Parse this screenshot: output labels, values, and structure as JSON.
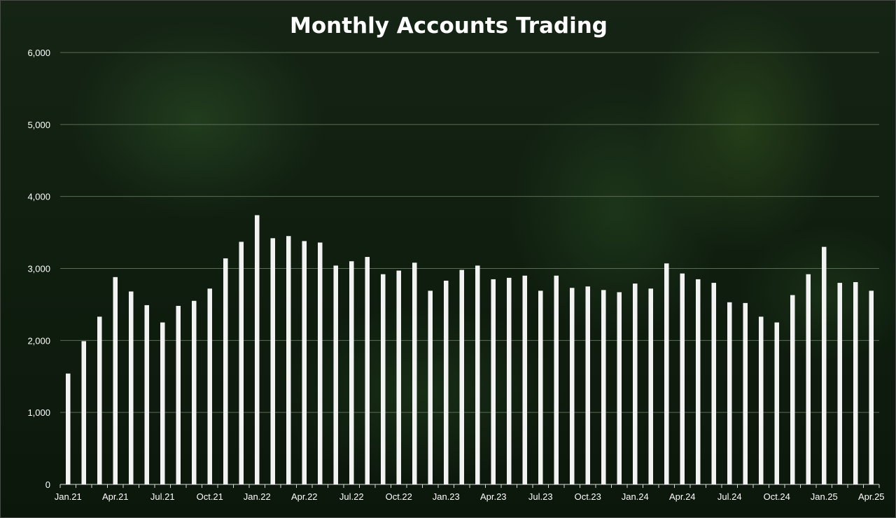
{
  "chart_data": {
    "type": "bar",
    "title": "Monthly Accounts Trading",
    "xlabel": "",
    "ylabel": "",
    "ylim": [
      0,
      6000
    ],
    "yticks": [
      0,
      1000,
      2000,
      3000,
      4000,
      5000,
      6000
    ],
    "ytick_labels": [
      "0",
      "1,000",
      "2,000",
      "3,000",
      "4,000",
      "5,000",
      "6,000"
    ],
    "grid": true,
    "legend": "none",
    "colors": {
      "bar": "#f2f2f2",
      "grid": "#5a6e55",
      "axis_text": "#ffffff",
      "background": "#122012"
    },
    "categories": [
      "Jan.21",
      "Feb.21",
      "Mar.21",
      "Apr.21",
      "May.21",
      "Jun.21",
      "Jul.21",
      "Aug.21",
      "Sep.21",
      "Oct.21",
      "Nov.21",
      "Dec.21",
      "Jan.22",
      "Feb.22",
      "Mar.22",
      "Apr.22",
      "May.22",
      "Jun.22",
      "Jul.22",
      "Aug.22",
      "Sep.22",
      "Oct.22",
      "Nov.22",
      "Dec.22",
      "Jan.23",
      "Feb.23",
      "Mar.23",
      "Apr.23",
      "May.23",
      "Jun.23",
      "Jul.23",
      "Aug.23",
      "Sep.23",
      "Oct.23",
      "Nov.23",
      "Dec.23",
      "Jan.24",
      "Feb.24",
      "Mar.24",
      "Apr.24",
      "May.24",
      "Jun.24",
      "Jul.24",
      "Aug.24",
      "Sep.24",
      "Oct.24",
      "Nov.24",
      "Dec.24",
      "Jan.25",
      "Feb.25",
      "Mar.25",
      "Apr.25"
    ],
    "xtick_labels_shown": [
      "Jan.21",
      "Apr.21",
      "Jul.21",
      "Oct.21",
      "Jan.22",
      "Apr.22",
      "Jul.22",
      "Oct.22",
      "Jan.23",
      "Apr.23",
      "Jul.23",
      "Oct.23",
      "Jan.24",
      "Apr.24",
      "Jul.24",
      "Oct.24",
      "Jan.25",
      "Apr.25"
    ],
    "values": [
      1540,
      1990,
      2330,
      2880,
      2680,
      2490,
      2250,
      2480,
      2550,
      2720,
      3140,
      3370,
      3740,
      3420,
      3450,
      3380,
      3360,
      3040,
      3100,
      3160,
      2920,
      2970,
      3080,
      2690,
      2830,
      2980,
      3040,
      2850,
      2870,
      2900,
      2690,
      2900,
      2730,
      2750,
      2700,
      2670,
      2790,
      2720,
      3070,
      2930,
      2850,
      2800,
      2530,
      2520,
      2330,
      2250,
      2630,
      2920,
      3300,
      2800,
      2810,
      2690
    ]
  }
}
